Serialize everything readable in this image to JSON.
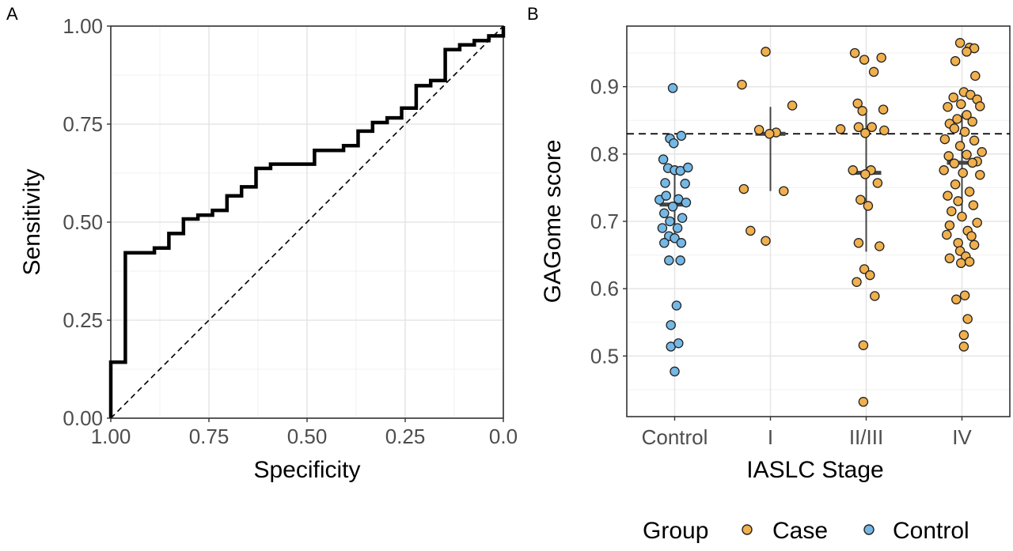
{
  "chart_data": [
    {
      "panel": "A",
      "type": "line",
      "xlabel": "Specificity",
      "ylabel": "Sensitivity",
      "xlim": [
        1.0,
        0.0
      ],
      "ylim": [
        0.0,
        1.0
      ],
      "x_reversed": true,
      "x_ticks": [
        "1.00",
        "0.75",
        "0.50",
        "0.25",
        "0.0"
      ],
      "x_tick_values": [
        1.0,
        0.75,
        0.5,
        0.25,
        0.0
      ],
      "y_ticks": [
        "0.00",
        "0.25",
        "0.50",
        "0.75",
        "1.00"
      ],
      "y_tick_values": [
        0.0,
        0.25,
        0.5,
        0.75,
        1.0
      ],
      "grid": true,
      "roc_steps": [
        [
          1.0,
          0.0
        ],
        [
          1.0,
          0.143
        ],
        [
          0.963,
          0.143
        ],
        [
          0.963,
          0.422
        ],
        [
          0.889,
          0.422
        ],
        [
          0.889,
          0.434
        ],
        [
          0.852,
          0.434
        ],
        [
          0.852,
          0.471
        ],
        [
          0.815,
          0.471
        ],
        [
          0.815,
          0.508
        ],
        [
          0.778,
          0.508
        ],
        [
          0.778,
          0.518
        ],
        [
          0.741,
          0.518
        ],
        [
          0.741,
          0.53
        ],
        [
          0.704,
          0.53
        ],
        [
          0.704,
          0.567
        ],
        [
          0.667,
          0.567
        ],
        [
          0.667,
          0.59
        ],
        [
          0.63,
          0.59
        ],
        [
          0.63,
          0.637
        ],
        [
          0.593,
          0.637
        ],
        [
          0.593,
          0.648
        ],
        [
          0.519,
          0.648
        ],
        [
          0.519,
          0.648
        ],
        [
          0.481,
          0.648
        ],
        [
          0.481,
          0.683
        ],
        [
          0.407,
          0.683
        ],
        [
          0.407,
          0.695
        ],
        [
          0.37,
          0.695
        ],
        [
          0.37,
          0.732
        ],
        [
          0.333,
          0.732
        ],
        [
          0.333,
          0.754
        ],
        [
          0.296,
          0.754
        ],
        [
          0.296,
          0.766
        ],
        [
          0.259,
          0.766
        ],
        [
          0.259,
          0.791
        ],
        [
          0.222,
          0.791
        ],
        [
          0.222,
          0.848
        ],
        [
          0.185,
          0.848
        ],
        [
          0.185,
          0.861
        ],
        [
          0.148,
          0.861
        ],
        [
          0.148,
          0.94
        ],
        [
          0.111,
          0.94
        ],
        [
          0.111,
          0.952
        ],
        [
          0.074,
          0.952
        ],
        [
          0.074,
          0.963
        ],
        [
          0.037,
          0.963
        ],
        [
          0.037,
          0.975
        ],
        [
          0.0,
          0.975
        ],
        [
          0.0,
          0.988
        ],
        [
          0.0,
          1.0
        ]
      ],
      "reference_line": [
        [
          1.0,
          0.0
        ],
        [
          0.0,
          1.0
        ]
      ]
    },
    {
      "panel": "B",
      "type": "scatter",
      "xlabel": "IASLC Stage",
      "ylabel": "GAGome score",
      "categories": [
        "Control",
        "I",
        "II/III",
        "IV"
      ],
      "y_ticks": [
        "0.5",
        "0.6",
        "0.7",
        "0.8",
        "0.9"
      ],
      "y_tick_values": [
        0.5,
        0.6,
        0.7,
        0.8,
        0.9
      ],
      "ylim": [
        0.41,
        0.99
      ],
      "grid": true,
      "threshold": 0.83,
      "legend": {
        "title": "Group",
        "position": "bottom",
        "entries": [
          "Case",
          "Control"
        ]
      },
      "colors": {
        "Case": "#f0b04d",
        "Control": "#74b8e6",
        "outline": "#222222",
        "median": "#444444"
      },
      "summary": [
        {
          "category": "Control",
          "median": 0.725,
          "low": 0.68,
          "high": 0.78
        },
        {
          "category": "I",
          "median": 0.83,
          "low": 0.745,
          "high": 0.87
        },
        {
          "category": "II/III",
          "median": 0.772,
          "low": 0.655,
          "high": 0.862
        },
        {
          "category": "IV",
          "median": 0.787,
          "low": 0.7,
          "high": 0.86
        }
      ],
      "series": [
        {
          "name": "Control",
          "category": "Control",
          "points": [
            [
              -0.02,
              0.898
            ],
            [
              -0.05,
              0.823
            ],
            [
              -0.01,
              0.816
            ],
            [
              0.07,
              0.827
            ],
            [
              -0.12,
              0.792
            ],
            [
              -0.07,
              0.779
            ],
            [
              0.0,
              0.776
            ],
            [
              0.06,
              0.775
            ],
            [
              0.14,
              0.78
            ],
            [
              -0.1,
              0.757
            ],
            [
              0.11,
              0.756
            ],
            [
              -0.16,
              0.732
            ],
            [
              -0.09,
              0.738
            ],
            [
              0.04,
              0.733
            ],
            [
              0.12,
              0.728
            ],
            [
              -0.02,
              0.722
            ],
            [
              -0.11,
              0.712
            ],
            [
              -0.05,
              0.7
            ],
            [
              0.08,
              0.705
            ],
            [
              -0.13,
              0.69
            ],
            [
              0.03,
              0.69
            ],
            [
              -0.06,
              0.678
            ],
            [
              0.0,
              0.675
            ],
            [
              -0.11,
              0.668
            ],
            [
              0.07,
              0.668
            ],
            [
              -0.06,
              0.642
            ],
            [
              0.06,
              0.642
            ],
            [
              0.02,
              0.575
            ],
            [
              -0.04,
              0.546
            ],
            [
              -0.04,
              0.514
            ],
            [
              0.04,
              0.519
            ],
            [
              0.0,
              0.477
            ]
          ]
        },
        {
          "name": "Case",
          "category": "I",
          "points": [
            [
              -0.05,
              0.952
            ],
            [
              -0.3,
              0.903
            ],
            [
              0.23,
              0.872
            ],
            [
              -0.12,
              0.836
            ],
            [
              0.06,
              0.832
            ],
            [
              -0.01,
              0.83
            ],
            [
              -0.28,
              0.748
            ],
            [
              0.14,
              0.745
            ],
            [
              -0.21,
              0.686
            ],
            [
              -0.05,
              0.671
            ]
          ]
        },
        {
          "name": "Case",
          "category": "II/III",
          "points": [
            [
              -0.12,
              0.95
            ],
            [
              -0.02,
              0.94
            ],
            [
              0.16,
              0.943
            ],
            [
              0.08,
              0.922
            ],
            [
              -0.09,
              0.875
            ],
            [
              -0.04,
              0.864
            ],
            [
              0.18,
              0.866
            ],
            [
              -0.27,
              0.837
            ],
            [
              -0.08,
              0.84
            ],
            [
              0.06,
              0.84
            ],
            [
              0.19,
              0.835
            ],
            [
              -0.01,
              0.831
            ],
            [
              -0.14,
              0.776
            ],
            [
              0.05,
              0.776
            ],
            [
              -0.01,
              0.77
            ],
            [
              0.12,
              0.757
            ],
            [
              -0.06,
              0.732
            ],
            [
              0.02,
              0.723
            ],
            [
              -0.08,
              0.668
            ],
            [
              0.14,
              0.663
            ],
            [
              -0.02,
              0.629
            ],
            [
              0.04,
              0.62
            ],
            [
              -0.1,
              0.61
            ],
            [
              0.09,
              0.589
            ],
            [
              -0.03,
              0.516
            ],
            [
              -0.03,
              0.432
            ]
          ]
        },
        {
          "name": "Case",
          "category": "IV",
          "points": [
            [
              -0.02,
              0.965
            ],
            [
              0.08,
              0.958
            ],
            [
              0.13,
              0.957
            ],
            [
              0.05,
              0.952
            ],
            [
              -0.07,
              0.938
            ],
            [
              0.14,
              0.916
            ],
            [
              0.02,
              0.892
            ],
            [
              -0.09,
              0.884
            ],
            [
              0.09,
              0.888
            ],
            [
              0.16,
              0.881
            ],
            [
              -0.15,
              0.87
            ],
            [
              -0.01,
              0.874
            ],
            [
              0.19,
              0.871
            ],
            [
              0.05,
              0.858
            ],
            [
              -0.05,
              0.852
            ],
            [
              -0.13,
              0.845
            ],
            [
              0.11,
              0.848
            ],
            [
              -0.08,
              0.838
            ],
            [
              0.03,
              0.833
            ],
            [
              -0.18,
              0.822
            ],
            [
              0.13,
              0.82
            ],
            [
              -0.02,
              0.812
            ],
            [
              0.21,
              0.803
            ],
            [
              -0.14,
              0.797
            ],
            [
              0.05,
              0.799
            ],
            [
              0.16,
              0.789
            ],
            [
              -0.08,
              0.786
            ],
            [
              0.11,
              0.787
            ],
            [
              -0.19,
              0.776
            ],
            [
              0.01,
              0.772
            ],
            [
              0.19,
              0.769
            ],
            [
              -0.07,
              0.755
            ],
            [
              0.08,
              0.744
            ],
            [
              -0.15,
              0.738
            ],
            [
              -0.04,
              0.73
            ],
            [
              0.12,
              0.724
            ],
            [
              -0.11,
              0.715
            ],
            [
              0.0,
              0.707
            ],
            [
              0.16,
              0.698
            ],
            [
              -0.13,
              0.694
            ],
            [
              0.06,
              0.686
            ],
            [
              -0.16,
              0.68
            ],
            [
              0.1,
              0.678
            ],
            [
              -0.04,
              0.668
            ],
            [
              0.13,
              0.665
            ],
            [
              -0.02,
              0.656
            ],
            [
              -0.13,
              0.645
            ],
            [
              0.04,
              0.648
            ],
            [
              -0.01,
              0.638
            ],
            [
              0.08,
              0.64
            ],
            [
              0.03,
              0.59
            ],
            [
              -0.06,
              0.584
            ],
            [
              0.06,
              0.555
            ],
            [
              0.02,
              0.531
            ],
            [
              0.02,
              0.514
            ]
          ]
        }
      ]
    }
  ],
  "labels": {
    "panel_a": "A",
    "panel_b": "B",
    "roc_xlabel": "Specificity",
    "roc_ylabel": "Sensitivity",
    "b_xlabel": "IASLC Stage",
    "b_ylabel": "GAGome score",
    "legend_title": "Group",
    "legend_case": "Case",
    "legend_control": "Control"
  }
}
